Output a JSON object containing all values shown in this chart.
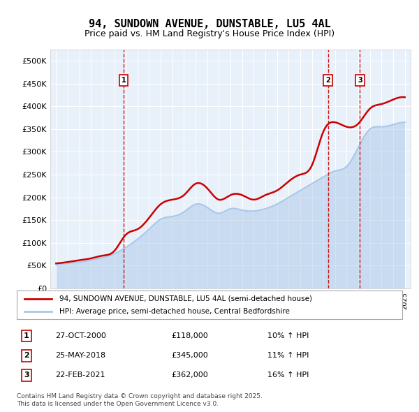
{
  "title": "94, SUNDOWN AVENUE, DUNSTABLE, LU5 4AL",
  "subtitle": "Price paid vs. HM Land Registry's House Price Index (HPI)",
  "legend_line1": "94, SUNDOWN AVENUE, DUNSTABLE, LU5 4AL (semi-detached house)",
  "legend_line2": "HPI: Average price, semi-detached house, Central Bedfordshire",
  "footer": "Contains HM Land Registry data © Crown copyright and database right 2025.\nThis data is licensed under the Open Government Licence v3.0.",
  "sale_color": "#cc0000",
  "hpi_color": "#aac8e8",
  "background_color": "#dde8f5",
  "plot_bg_color": "#e8f0fa",
  "vline_color": "#cc0000",
  "ylim": [
    0,
    525000
  ],
  "yticks": [
    0,
    50000,
    100000,
    150000,
    200000,
    250000,
    300000,
    350000,
    400000,
    450000,
    500000
  ],
  "ytick_labels": [
    "£0",
    "£50K",
    "£100K",
    "£150K",
    "£200K",
    "£250K",
    "£300K",
    "£350K",
    "£400K",
    "£450K",
    "£500K"
  ],
  "sales": [
    {
      "date_num": 2000.82,
      "price": 118000,
      "label": "1"
    },
    {
      "date_num": 2018.39,
      "price": 345000,
      "label": "2"
    },
    {
      "date_num": 2021.14,
      "price": 362000,
      "label": "3"
    }
  ],
  "table_data": [
    {
      "num": "1",
      "date": "27-OCT-2000",
      "price": "£118,000",
      "hpi": "10% ↑ HPI"
    },
    {
      "num": "2",
      "date": "25-MAY-2018",
      "price": "£345,000",
      "hpi": "11% ↑ HPI"
    },
    {
      "num": "3",
      "date": "22-FEB-2021",
      "price": "£362,000",
      "hpi": "16% ↑ HPI"
    }
  ],
  "hpi_data": {
    "years": [
      1995,
      1996,
      1997,
      1998,
      1999,
      2000,
      2001,
      2002,
      2003,
      2004,
      2005,
      2006,
      2007,
      2008,
      2009,
      2010,
      2011,
      2012,
      2013,
      2014,
      2015,
      2016,
      2017,
      2018,
      2019,
      2020,
      2021,
      2022,
      2023,
      2024,
      2025
    ],
    "values": [
      52000,
      55000,
      58000,
      62000,
      68000,
      76000,
      90000,
      108000,
      130000,
      152000,
      158000,
      168000,
      185000,
      178000,
      165000,
      175000,
      172000,
      170000,
      175000,
      185000,
      200000,
      215000,
      230000,
      245000,
      258000,
      268000,
      310000,
      350000,
      355000,
      360000,
      365000
    ]
  },
  "sale_line_data": {
    "years": [
      1995,
      1996,
      1997,
      1998,
      1999,
      2000,
      2001,
      2002,
      2003,
      2004,
      2005,
      2006,
      2007,
      2008,
      2009,
      2010,
      2011,
      2012,
      2013,
      2014,
      2015,
      2016,
      2017,
      2018,
      2019,
      2020,
      2021,
      2022,
      2023,
      2024,
      2025
    ],
    "values": [
      55000,
      58000,
      62000,
      66000,
      72000,
      82000,
      118000,
      130000,
      155000,
      185000,
      195000,
      205000,
      230000,
      220000,
      195000,
      205000,
      205000,
      195000,
      205000,
      215000,
      235000,
      250000,
      270000,
      345000,
      365000,
      355000,
      362000,
      395000,
      405000,
      415000,
      420000
    ]
  }
}
